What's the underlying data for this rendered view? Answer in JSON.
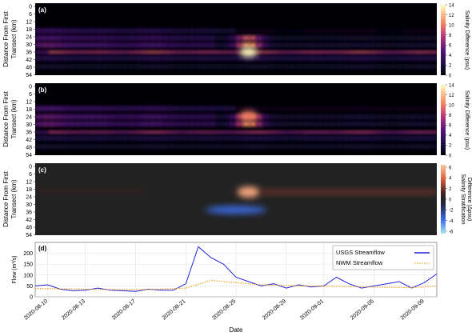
{
  "chart_data": [
    {
      "panel_label": "(a)",
      "type": "heatmap",
      "ylabel_lines": [
        "Distance From First",
        "Transect (km)"
      ],
      "y_ticks": [
        "0",
        "6",
        "12",
        "18",
        "24",
        "30",
        "36",
        "42",
        "48",
        "54"
      ],
      "colorbar": {
        "label": "Salinity Difference (psu)",
        "ticks": [
          "14",
          "12",
          "10",
          "8",
          "6",
          "4",
          "2",
          "0"
        ],
        "range": [
          0,
          14
        ],
        "colormap": "magma"
      },
      "bands_km": [
        {
          "km": 40,
          "value": 9,
          "time_profile": "strong_whole_period"
        },
        {
          "km": 45,
          "value": 3,
          "time_profile": "weak_whole_period"
        },
        {
          "km": 22,
          "value": 4,
          "time_profile": "early_until_aug25"
        },
        {
          "km": 28,
          "value": 5,
          "time_profile": "early_plus_aug26_peak"
        },
        {
          "km": 34,
          "value": 6,
          "time_profile": "early_plus_aug26_peak"
        },
        {
          "km": 52,
          "value": 1.5,
          "time_profile": "weak_whole_period"
        }
      ],
      "hotspot": {
        "date": "2020-08-26",
        "km": 40,
        "value": 14
      }
    },
    {
      "panel_label": "(b)",
      "type": "heatmap",
      "ylabel_lines": [
        "Distance From First",
        "Transect (km)"
      ],
      "y_ticks": [
        "0",
        "6",
        "12",
        "18",
        "24",
        "30",
        "36",
        "42",
        "48",
        "54"
      ],
      "colorbar": {
        "label": "Salinity Difference (psu)",
        "ticks": [
          "14",
          "12",
          "10",
          "8",
          "6",
          "4",
          "2",
          "0"
        ],
        "range": [
          0,
          14
        ],
        "colormap": "magma"
      },
      "bands_km": [
        {
          "km": 40,
          "value": 8,
          "time_profile": "strong_whole_period"
        },
        {
          "km": 45,
          "value": 2.5,
          "time_profile": "weak_whole_period"
        },
        {
          "km": 20,
          "value": 5,
          "time_profile": "early_until_aug25"
        },
        {
          "km": 27,
          "value": 6,
          "time_profile": "early_plus_aug26_peak"
        },
        {
          "km": 33,
          "value": 6,
          "time_profile": "early_plus_aug26_peak"
        },
        {
          "km": 52,
          "value": 1.5,
          "time_profile": "weak_whole_period"
        }
      ],
      "hotspot": {
        "date": "2020-08-26",
        "km": 26,
        "value": 10
      }
    },
    {
      "panel_label": "(c)",
      "type": "heatmap",
      "ylabel_lines": [
        "Distance From First",
        "Transect (km)"
      ],
      "y_ticks": [
        "0",
        "6",
        "12",
        "18",
        "24",
        "30",
        "36",
        "42",
        "48",
        "54"
      ],
      "colorbar": {
        "label_lines": [
          "Salinity Stratification",
          "Difference (Δpsu)"
        ],
        "ticks": [
          "6",
          "4",
          "2",
          "0",
          "-2",
          "-4",
          "-6"
        ],
        "range": [
          -7,
          7
        ],
        "colormap": "diverging"
      },
      "features": [
        {
          "date": "2020-08-26",
          "km": 23,
          "value": 6
        },
        {
          "date": "2020-08-25",
          "km": 38,
          "value": -4
        },
        {
          "km": 23,
          "value": 2,
          "period": [
            "2020-08-27",
            "2020-09-10"
          ]
        }
      ]
    },
    {
      "panel_label": "(d)",
      "type": "line",
      "ylabel": "Flow (m³/s)",
      "xlabel": "Date",
      "ylim": [
        0,
        250
      ],
      "y_ticks": [
        "0",
        "50",
        "100",
        "150",
        "200"
      ],
      "x_tick_labels": [
        "2020-08-10",
        "2020-08-13",
        "2020-08-17",
        "2020-08-21",
        "2020-08-25",
        "2020-08-29",
        "2020-09-01",
        "2020-09-05",
        "2020-09-09"
      ],
      "x_range": [
        "2020-08-09",
        "2020-09-10"
      ],
      "grid": true,
      "legend_position": "upper-right",
      "series": [
        {
          "name": "USGS Streamflow",
          "color": "#2323d6",
          "style": "solid",
          "x": [
            "2020-08-09",
            "2020-08-10",
            "2020-08-11",
            "2020-08-12",
            "2020-08-13",
            "2020-08-14",
            "2020-08-15",
            "2020-08-16",
            "2020-08-17",
            "2020-08-18",
            "2020-08-19",
            "2020-08-20",
            "2020-08-21",
            "2020-08-22",
            "2020-08-23",
            "2020-08-24",
            "2020-08-25",
            "2020-08-26",
            "2020-08-27",
            "2020-08-28",
            "2020-08-29",
            "2020-08-30",
            "2020-08-31",
            "2020-09-01",
            "2020-09-02",
            "2020-09-03",
            "2020-09-04",
            "2020-09-05",
            "2020-09-06",
            "2020-09-07",
            "2020-09-08",
            "2020-09-09",
            "2020-09-10"
          ],
          "y": [
            50,
            55,
            35,
            28,
            30,
            40,
            30,
            28,
            25,
            35,
            30,
            30,
            60,
            230,
            180,
            150,
            90,
            70,
            50,
            60,
            40,
            55,
            45,
            50,
            90,
            60,
            40,
            50,
            60,
            70,
            40,
            65,
            105
          ]
        },
        {
          "name": "NWM Streamflow",
          "color": "#f0a020",
          "style": "dotted",
          "x": [
            "2020-08-09",
            "2020-08-12",
            "2020-08-15",
            "2020-08-18",
            "2020-08-21",
            "2020-08-23",
            "2020-08-25",
            "2020-08-27",
            "2020-08-30",
            "2020-09-02",
            "2020-09-05",
            "2020-09-08",
            "2020-09-10"
          ],
          "y": [
            38,
            36,
            33,
            33,
            40,
            75,
            65,
            55,
            50,
            48,
            45,
            42,
            50
          ]
        }
      ]
    }
  ]
}
